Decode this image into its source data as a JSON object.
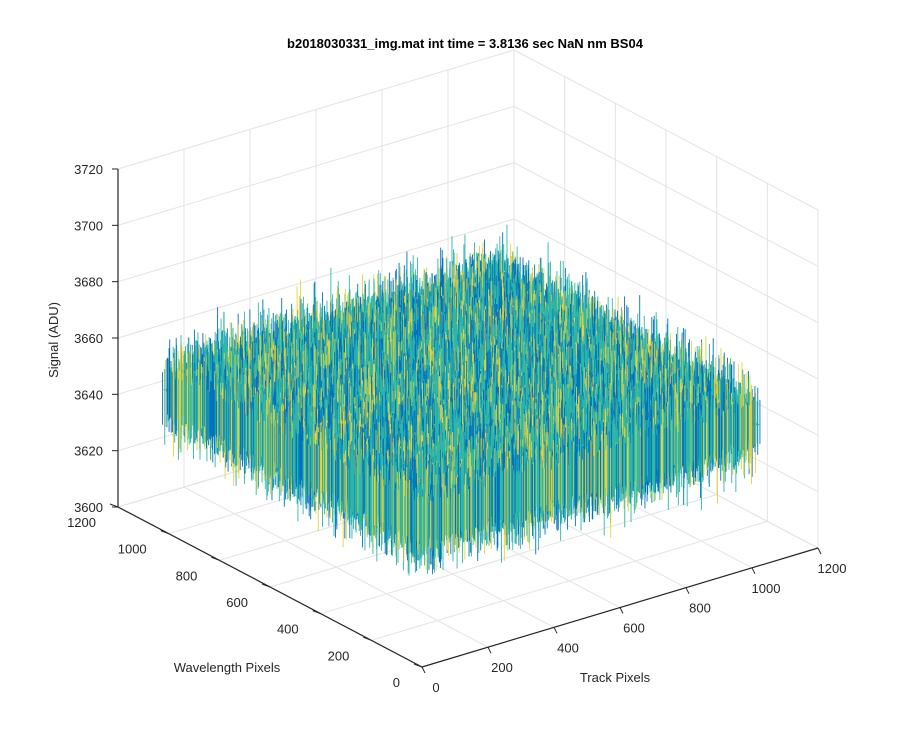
{
  "chart_data": {
    "type": "surface",
    "title": "b2018030331_img.mat int time = 3.8136 sec  NaN nm BS04",
    "xlabel": "Track Pixels",
    "ylabel": "Wavelength Pixels",
    "zlabel": "Signal (ADU)",
    "xlim": [
      0,
      1200
    ],
    "ylim": [
      0,
      1200
    ],
    "zlim": [
      3600,
      3720
    ],
    "x_ticks": [
      "0",
      "200",
      "400",
      "600",
      "800",
      "1000",
      "1200"
    ],
    "y_ticks": [
      "0",
      "200",
      "400",
      "600",
      "800",
      "1000",
      "1200"
    ],
    "z_ticks": [
      "3600",
      "3620",
      "3640",
      "3660",
      "3680",
      "3700",
      "3720"
    ],
    "surface": {
      "x_range": [
        0,
        1024
      ],
      "y_range": [
        0,
        1024
      ],
      "mean_signal": 3650,
      "signal_range": [
        3610,
        3700
      ]
    },
    "grid": true,
    "colormap": "parula",
    "colors": {
      "low": "#0072bd",
      "mid": "#2eb7a9",
      "high": "#e6d23a"
    }
  }
}
